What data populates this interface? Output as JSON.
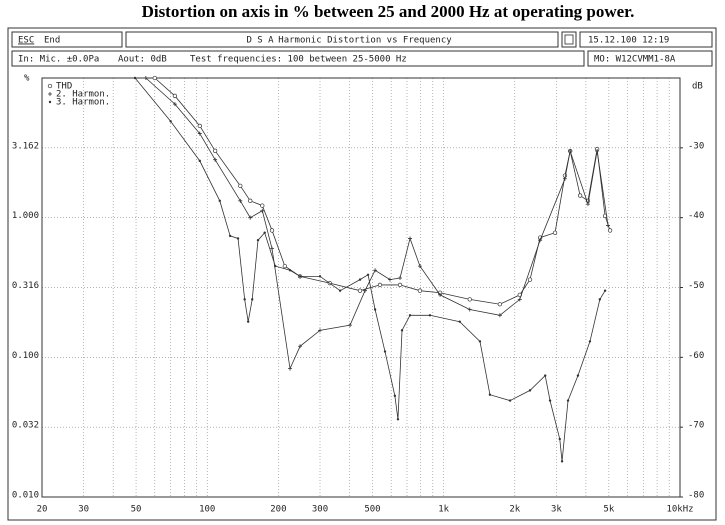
{
  "header": {
    "esc": "ESC",
    "end": "End",
    "app": "D S A",
    "function": "Harmonic Distortion vs Frequency",
    "datetime": "15.12.100 12:19",
    "input": "In: Mic. ±0.0Pa",
    "aout": "Aout: 0dB",
    "test": "Test frequencies: 100 between 25-5000 Hz",
    "model": "MO: W12CVMM1-8A"
  },
  "chart_data": {
    "type": "line",
    "title": "Distortion on axis in % between 25 and 2000 Hz at operating power.",
    "ylabel": "%",
    "y2label": "dB",
    "xscale": "log",
    "yscale": "log",
    "grid": true,
    "legend": "upper left",
    "xlim": [
      20,
      10000
    ],
    "xticks": [
      20,
      30,
      50,
      100,
      200,
      300,
      500,
      {
        "value": 1000,
        "label": "1k"
      },
      {
        "value": 2000,
        "label": "2k"
      },
      {
        "value": 3000,
        "label": "3k"
      },
      {
        "value": 5000,
        "label": "5k"
      },
      {
        "value": 10000,
        "label": "10kHz"
      }
    ],
    "xminorticks": [
      40,
      60,
      70,
      80,
      90,
      400,
      600,
      700,
      800,
      900,
      4000,
      6000,
      7000,
      8000,
      9000
    ],
    "ylim": [
      0.01,
      10
    ],
    "yticks": [
      {
        "value": 0.01,
        "label": "0.010"
      },
      {
        "value": 0.0316,
        "label": "0.032"
      },
      {
        "value": 0.1,
        "label": "0.100"
      },
      0.316,
      {
        "value": 1,
        "label": "1.000"
      },
      3.162
    ],
    "y2lim": [
      -80,
      -20
    ],
    "y2ticks": [
      -80,
      -70,
      -60,
      -50,
      -40,
      -30
    ],
    "series": [
      {
        "name": "THD",
        "color": "#333333",
        "marker": "circle",
        "x": [
          60,
          73,
          93,
          108,
          138,
          152,
          171,
          188,
          213,
          247,
          330,
          443,
          538,
          654,
          794,
          966,
          1290,
          1730,
          2100,
          2320,
          2560,
          2960,
          3260,
          3430,
          3780,
          4080,
          4460,
          4820,
          5060
        ],
        "values": [
          10,
          7.44,
          4.54,
          3.01,
          1.69,
          1.32,
          1.22,
          0.81,
          0.45,
          0.38,
          0.34,
          0.3,
          0.33,
          0.33,
          0.3,
          0.29,
          0.26,
          0.24,
          0.28,
          0.36,
          0.72,
          0.78,
          2.0,
          3.0,
          1.44,
          1.32,
          3.1,
          1.03,
          0.81
        ]
      },
      {
        "name": "2. Harmon.",
        "color": "#333333",
        "marker": "plus",
        "x": [
          55,
          73,
          93,
          108,
          138,
          152,
          171,
          188,
          224,
          247,
          300,
          402,
          465,
          513,
          593,
          654,
          721,
          794,
          966,
          1290,
          1730,
          2100,
          2560,
          3260,
          3430,
          4080,
          4460,
          4960
        ],
        "values": [
          10,
          6.5,
          4.0,
          2.6,
          1.32,
          1.0,
          1.12,
          0.6,
          0.083,
          0.12,
          0.156,
          0.17,
          0.3,
          0.42,
          0.36,
          0.37,
          0.71,
          0.45,
          0.28,
          0.22,
          0.2,
          0.26,
          0.69,
          1.9,
          3.0,
          1.25,
          3.0,
          0.88
        ]
      },
      {
        "name": "3. Harmon.",
        "color": "#333333",
        "marker": "dot",
        "x": [
          49.5,
          70,
          93,
          113,
          125,
          135,
          144,
          149,
          155,
          164,
          175,
          194,
          224,
          247,
          300,
          365,
          443,
          479,
          513,
          565,
          622,
          641,
          667,
          721,
          875,
          1170,
          1425,
          1570,
          1910,
          2320,
          2690,
          2820,
          3100,
          3170,
          3360,
          3700,
          4160,
          4580,
          4820
        ],
        "values": [
          10,
          4.9,
          2.55,
          1.32,
          0.74,
          0.71,
          0.26,
          0.18,
          0.26,
          0.69,
          0.78,
          0.45,
          0.42,
          0.38,
          0.38,
          0.3,
          0.36,
          0.39,
          0.22,
          0.11,
          0.053,
          0.036,
          0.156,
          0.2,
          0.2,
          0.18,
          0.13,
          0.054,
          0.049,
          0.058,
          0.074,
          0.049,
          0.026,
          0.018,
          0.049,
          0.074,
          0.13,
          0.26,
          0.3
        ]
      }
    ]
  }
}
